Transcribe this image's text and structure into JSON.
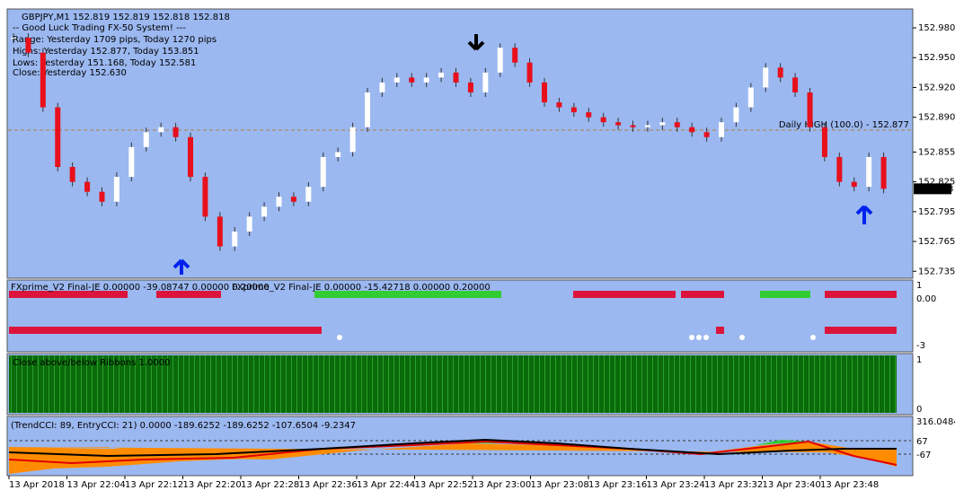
{
  "header": {
    "symbol_line": "GBPJPY,M1  152.819 152.819 152.818 152.818",
    "info": [
      "-- Good Luck Trading FX-50 System! ---",
      "Range: Yesterday 1709 pips, Today 1270 pips",
      "Highs: Yesterday 152.877, Today 153.851",
      "Lows: Yesterday 151.168, Today 152.581",
      "Close: Yesterday 152.630"
    ]
  },
  "price_axis": {
    "range": [
      152.728,
      152.999
    ],
    "ticks": [
      {
        "value": 152.98,
        "label": "152.980"
      },
      {
        "value": 152.95,
        "label": "152.950"
      },
      {
        "value": 152.92,
        "label": "152.920"
      },
      {
        "value": 152.89,
        "label": "152.890"
      },
      152.855,
      152.825,
      152.795,
      152.765,
      152.735
    ]
  },
  "candles": {
    "closes": [
      152.97,
      152.955,
      152.9,
      152.84,
      152.825,
      152.815,
      152.805,
      152.83,
      152.86,
      152.875,
      152.88,
      152.87,
      152.83,
      152.79,
      152.76,
      152.775,
      152.79,
      152.8,
      152.81,
      152.805,
      152.82,
      152.85,
      152.855,
      152.88,
      152.915,
      152.925,
      152.93,
      152.925,
      152.93,
      152.935,
      152.925,
      152.915,
      152.935,
      152.96,
      152.945,
      152.925,
      152.905,
      152.9,
      152.895,
      152.89,
      152.885,
      152.882,
      152.88,
      152.882,
      152.885,
      152.88,
      152.875,
      152.87,
      152.885,
      152.9,
      152.92,
      152.94,
      152.93,
      152.915,
      152.88,
      152.85,
      152.825,
      152.82,
      152.85,
      152.818
    ]
  },
  "daily_high": {
    "label": "Daily HIGH (100.0) - 152.877",
    "value": 152.877
  },
  "current_price": 152.818,
  "panels": [
    {
      "labels": [
        "FXprime_V2 Final-JE 0.00000 -39.08747 0.00000 0.20000",
        "FXprime_V2 Final-JE 0.00000 -15.42718 0.00000 0.20000"
      ],
      "ticks": [
        "1",
        "0.00",
        "-3"
      ]
    },
    {
      "labels": [
        "Close above/below Ribbons 1.0000"
      ],
      "ticks": [
        "1",
        "0"
      ]
    },
    {
      "labels": [
        "(TrendCCI: 89, EntryCCI: 21)  0.0000 -189.6252 -189.6252 -107.6504 -9.2347"
      ],
      "ticks": [
        "316.0484",
        "67",
        "-67"
      ]
    }
  ],
  "time_axis": [
    "13 Apr 2018",
    "13 Apr 22:04",
    "13 Apr 22:12",
    "13 Apr 22:20",
    "13 Apr 22:28",
    "13 Apr 22:36",
    "13 Apr 22:44",
    "13 Apr 22:52",
    "13 Apr 23:00",
    "13 Apr 23:08",
    "13 Apr 23:16",
    "13 Apr 23:24",
    "13 Apr 23:32",
    "13 Apr 23:40",
    "13 Apr 23:48"
  ]
}
